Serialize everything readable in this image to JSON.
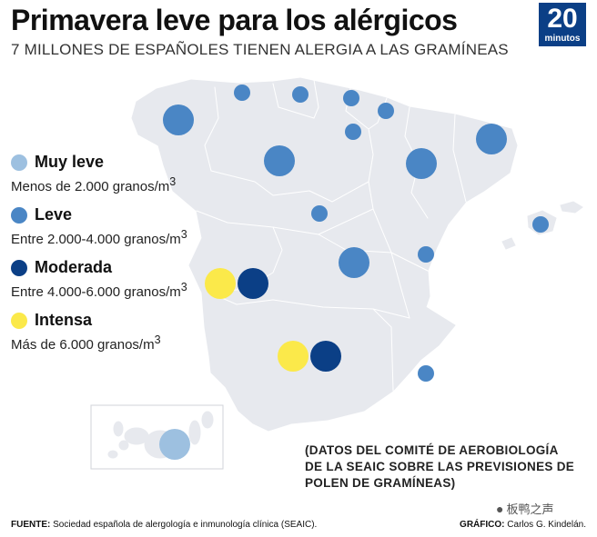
{
  "header": {
    "title": "Primavera leve para los alérgicos",
    "subtitle": "7 MILLONES DE ESPAÑOLES TIENEN ALERGIA A LAS GRAMÍNEAS"
  },
  "logo": {
    "number": "20",
    "word": "minutos",
    "color": "#0b3f86"
  },
  "legend": [
    {
      "name": "Muy leve",
      "desc": "Menos de 2.000 granos/m",
      "sup": "3",
      "color": "#9dc0e0"
    },
    {
      "name": "Leve",
      "desc": "Entre 2.000-4.000 granos/m",
      "sup": "3",
      "color": "#4a86c5"
    },
    {
      "name": "Moderada",
      "desc": "Entre 4.000-6.000 granos/m",
      "sup": "3",
      "color": "#0b3f86"
    },
    {
      "name": "Intensa",
      "desc": "Más de 6.000 granos/m",
      "sup": "3",
      "color": "#fbe94a"
    }
  ],
  "note": "(DATOS DEL COMITÉ DE AEROBIOLOGÍA DE LA SEAIC SOBRE LAS PREVISIONES DE POLEN DE GRAMÍNEAS)",
  "footer": {
    "source_label": "FUENTE:",
    "source_text": "Sociedad española de alergología e inmunología clínica (SEAIC).",
    "credit_label": "GRÁFICO:",
    "credit_text": "Carlos G. Kindelán."
  },
  "watermark": {
    "icon": "wechat-icon",
    "text": "板鸭之声"
  },
  "map_colors": {
    "land": "#e7e9ee",
    "borders": "#ffffff"
  }
}
